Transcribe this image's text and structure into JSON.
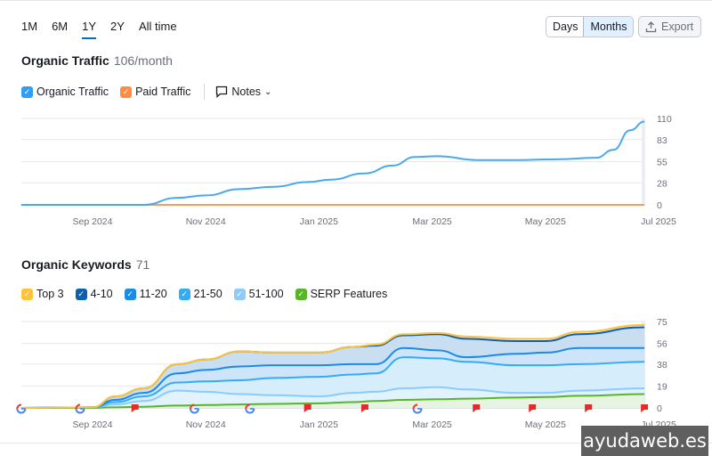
{
  "periods": [
    "1M",
    "6M",
    "1Y",
    "2Y",
    "All time"
  ],
  "active_period": "1Y",
  "granularity": {
    "days": "Days",
    "months": "Months",
    "selected": "Months"
  },
  "export_label": "Export",
  "traffic": {
    "title": "Organic Traffic",
    "value": "106/month",
    "legend": [
      {
        "label": "Organic Traffic",
        "color": "#2e9ff5"
      },
      {
        "label": "Paid Traffic",
        "color": "#ff8c42"
      }
    ],
    "notes_label": "Notes"
  },
  "keywords": {
    "title": "Organic Keywords",
    "value": "71",
    "legend": [
      {
        "label": "Top 3",
        "color": "#ffc33b"
      },
      {
        "label": "4-10",
        "color": "#0d5fb0"
      },
      {
        "label": "11-20",
        "color": "#1a8ce8"
      },
      {
        "label": "21-50",
        "color": "#33acf5"
      },
      {
        "label": "51-100",
        "color": "#8ccbfa"
      },
      {
        "label": "SERP Features",
        "color": "#59b528"
      }
    ]
  },
  "watermark": "ayudaweb.es",
  "chart_data": [
    {
      "type": "line",
      "title": "Organic Traffic",
      "x_unit": "months since Sep 2024",
      "x_ticks": [
        "Sep 2024",
        "Nov 2024",
        "Jan 2025",
        "Mar 2025",
        "May 2025",
        "Jul 2025"
      ],
      "y_ticks": [
        "110",
        "83",
        "55",
        "28",
        "0"
      ],
      "ylim": [
        0,
        110
      ],
      "series": [
        {
          "name": "Organic Traffic",
          "color": "#4aa8ec",
          "x": [
            -1.26,
            0,
            0.9,
            1.5,
            2,
            2.6,
            3.2,
            3.8,
            4.2,
            4.8,
            5.3,
            5.7,
            6.1,
            6.8,
            7.5,
            8.2,
            8.9,
            9.2,
            9.5,
            9.75
          ],
          "values": [
            0,
            0,
            0,
            9,
            12,
            20,
            23,
            29,
            32,
            40,
            50,
            61,
            62,
            57,
            57,
            58,
            60,
            70,
            95,
            106
          ]
        },
        {
          "name": "Paid Traffic",
          "color": "#ff9a5a",
          "x": [
            -1.26,
            9.75
          ],
          "values": [
            0,
            0
          ]
        }
      ]
    },
    {
      "type": "area",
      "title": "Organic Keywords",
      "x_unit": "months since Sep 2024",
      "x_ticks": [
        "Sep 2024",
        "Nov 2024",
        "Jan 2025",
        "Mar 2025",
        "May 2025",
        "Jul 2025"
      ],
      "y_ticks": [
        "75",
        "56",
        "38",
        "19",
        "0"
      ],
      "ylim": [
        0,
        75
      ],
      "x": [
        -1.26,
        0,
        0.4,
        0.9,
        1.5,
        2,
        2.6,
        3.2,
        4,
        4.6,
        5,
        5.5,
        6.1,
        6.6,
        7.5,
        8,
        8.6,
        9.75
      ],
      "series": [
        {
          "name": "Top 3",
          "color": "#ffc33b",
          "fill": "#e6eef7",
          "values": [
            0,
            0.5,
            10,
            17,
            38,
            42,
            49,
            48,
            48,
            53,
            55,
            64,
            65,
            62,
            60,
            60,
            66,
            72
          ]
        },
        {
          "name": "4-10",
          "color": "#0d5fb0",
          "fill": "#c4daf0",
          "values": [
            0,
            0.5,
            10,
            17,
            38,
            42,
            49,
            48,
            48,
            53,
            54,
            63,
            64,
            60,
            58,
            58,
            64,
            70
          ]
        },
        {
          "name": "11-20",
          "color": "#1a8ce8",
          "fill": "#cfe6fa",
          "values": [
            0,
            0.5,
            7,
            13,
            30,
            33,
            36,
            37,
            37,
            38,
            38,
            52,
            50,
            44,
            47,
            48,
            52,
            52
          ]
        },
        {
          "name": "21-50",
          "color": "#33acf5",
          "fill": "#d7effd",
          "values": [
            0,
            0.5,
            5,
            10,
            22,
            23,
            24,
            26,
            27,
            29,
            30,
            44,
            43,
            40,
            37,
            37,
            38,
            40
          ]
        },
        {
          "name": "51-100",
          "color": "#8ccbfa",
          "fill": "#e2f3fe",
          "values": [
            0,
            0.5,
            3,
            6,
            15,
            14,
            12,
            11,
            10,
            13,
            14,
            17,
            18,
            16,
            13,
            13,
            15,
            17
          ]
        },
        {
          "name": "SERP Features",
          "color": "#59b528",
          "fill": "#e6f4dc",
          "values": [
            0,
            0,
            0.5,
            1,
            2,
            2.5,
            3,
            3.5,
            4,
            5,
            6,
            7,
            7.5,
            8,
            9,
            9.5,
            10.5,
            12
          ]
        }
      ],
      "markers": [
        {
          "type": "google",
          "x": -1.26
        },
        {
          "type": "google",
          "x": -0.22
        },
        {
          "type": "google",
          "x": 1.8
        },
        {
          "type": "google",
          "x": 2.78
        },
        {
          "type": "google",
          "x": 5.74
        },
        {
          "type": "flag",
          "x": 0.75
        },
        {
          "type": "flag",
          "x": 3.8
        },
        {
          "type": "flag",
          "x": 4.81
        },
        {
          "type": "flag",
          "x": 6.78
        },
        {
          "type": "flag",
          "x": 7.77
        },
        {
          "type": "flag",
          "x": 8.76
        },
        {
          "type": "flag",
          "x": 9.75
        }
      ]
    }
  ]
}
